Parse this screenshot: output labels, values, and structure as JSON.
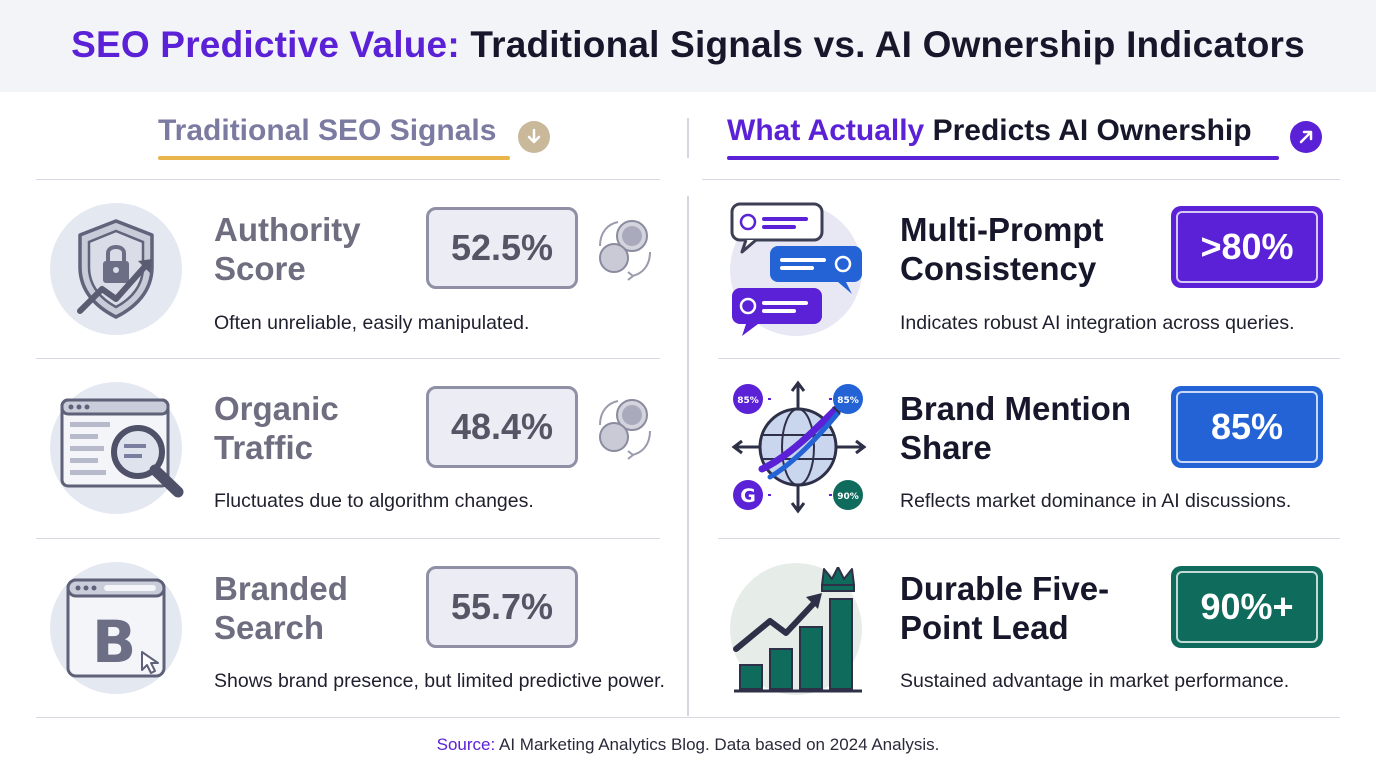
{
  "header": {
    "title_accent": "SEO Predictive Value:",
    "title_rest": "Traditional Signals vs. AI Ownership Indicators"
  },
  "left_column": {
    "heading": "Traditional SEO Signals",
    "heading_icon": "arrow-down-icon",
    "items": [
      {
        "name": "Authority Score",
        "value": "52.5%",
        "description": "Often unreliable, easily manipulated.",
        "icon": "shield-lock-icon"
      },
      {
        "name": "Organic Traffic",
        "value": "48.4%",
        "description": "Fluctuates due to algorithm changes.",
        "icon": "browser-magnifier-icon"
      },
      {
        "name": "Branded Search",
        "value": "55.7%",
        "description": "Shows brand presence, but limited predictive power.",
        "icon": "branded-b-icon"
      }
    ]
  },
  "right_column": {
    "heading_highlight": "What Actually",
    "heading_rest": "Predicts AI Ownership",
    "heading_icon": "arrow-up-right-icon",
    "items": [
      {
        "name": "Multi-Prompt Consistency",
        "value": ">80%",
        "description": "Indicates robust AI integration across queries.",
        "color": "#5b21d6",
        "icon": "chat-bubbles-icon"
      },
      {
        "name": "Brand Mention Share",
        "value": "85%",
        "description": "Reflects market dominance in AI discussions.",
        "color": "#2463d6",
        "icon": "globe-network-icon",
        "badges": [
          "85%",
          "85%",
          "90%"
        ],
        "badge_letter": "G"
      },
      {
        "name": "Durable Five-Point Lead",
        "value": "90%+",
        "description": "Sustained advantage in market performance.",
        "color": "#0f6b5c",
        "icon": "growth-chart-crown-icon"
      }
    ]
  },
  "colors": {
    "accent_purple": "#5b21d6",
    "blue": "#2463d6",
    "teal": "#0f6b5c",
    "gold": "#e9b54a"
  },
  "source": {
    "label": "Source:",
    "text": "AI Marketing Analytics Blog. Data based on 2024 Analysis."
  }
}
